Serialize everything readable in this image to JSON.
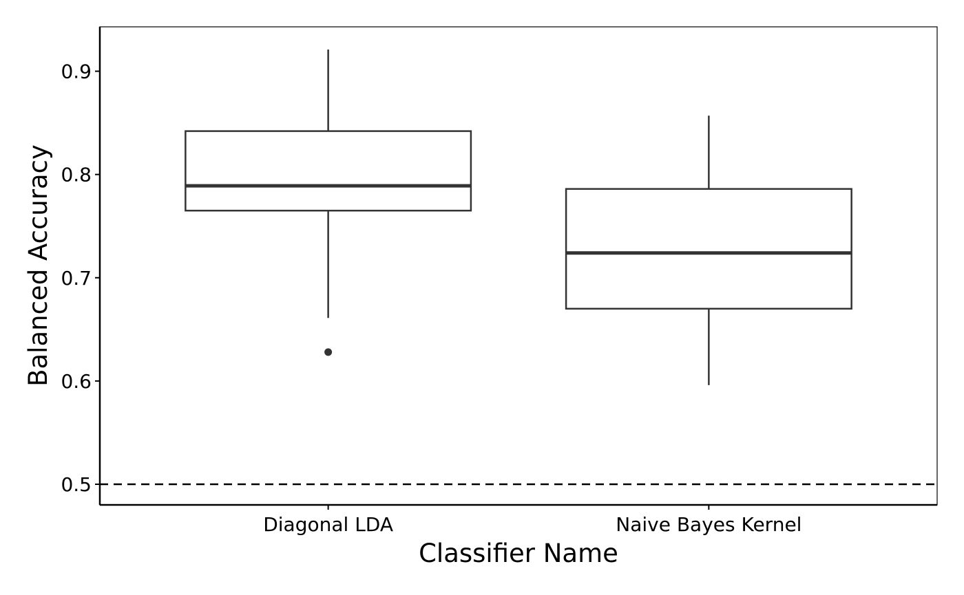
{
  "chart_data": {
    "type": "boxplot",
    "title": "",
    "xlabel": "Classifier Name",
    "ylabel": "Balanced Accuracy",
    "ylim": [
      0.48,
      0.943
    ],
    "yticks": [
      0.5,
      0.6,
      0.7,
      0.8,
      0.9
    ],
    "ytick_labels": [
      "0.5",
      "0.6",
      "0.7",
      "0.8",
      "0.9"
    ],
    "grid": false,
    "legend": "none",
    "reference_line": {
      "y": 0.5,
      "style": "dashed"
    },
    "categories": [
      "Diagonal LDA",
      "Naive Bayes Kernel"
    ],
    "boxes": [
      {
        "category": "Diagonal LDA",
        "whisker_low": 0.661,
        "q1": 0.765,
        "median": 0.789,
        "q3": 0.842,
        "whisker_high": 0.921,
        "outliers": [
          0.628
        ]
      },
      {
        "category": "Naive Bayes Kernel",
        "whisker_low": 0.596,
        "q1": 0.67,
        "median": 0.724,
        "q3": 0.786,
        "whisker_high": 0.857,
        "outliers": []
      }
    ],
    "colors": {
      "box_stroke": "#333333",
      "axis": "#000000",
      "background": "#ffffff"
    }
  }
}
